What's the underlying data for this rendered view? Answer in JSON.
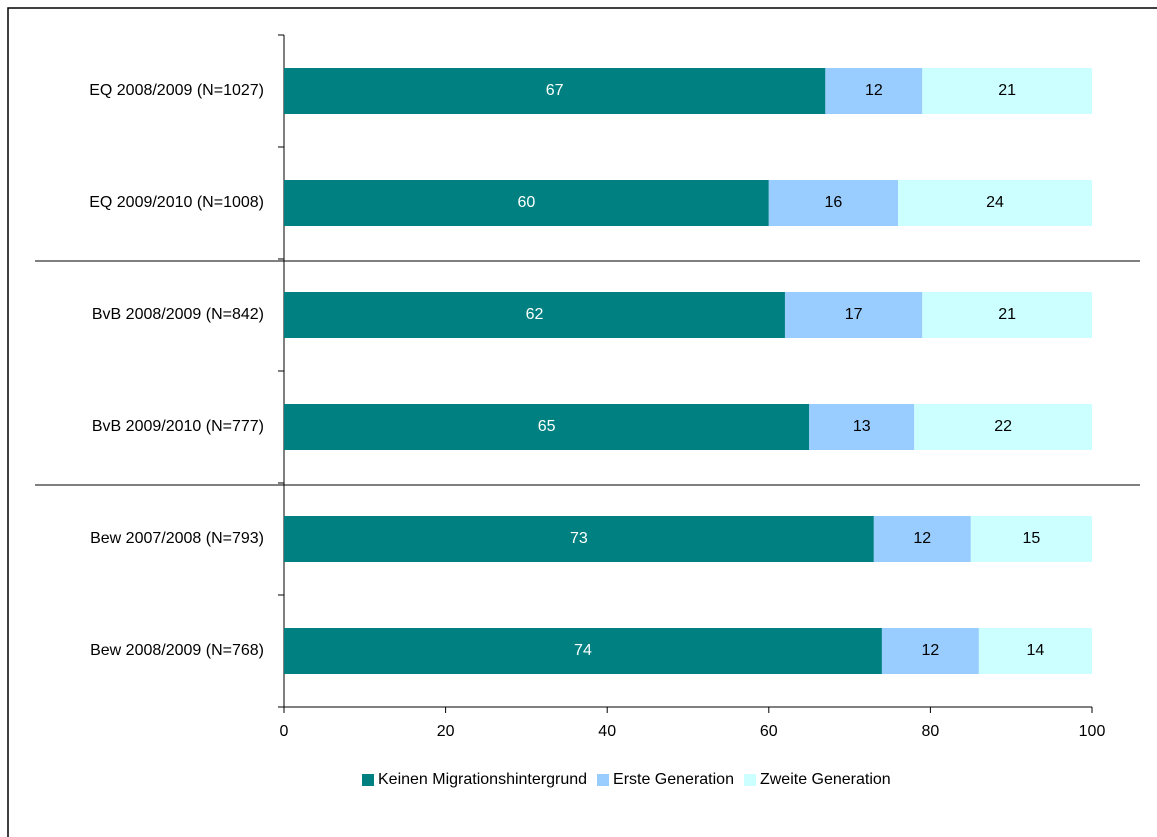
{
  "chart_data": {
    "type": "stacked_barh",
    "categories": [
      "EQ 2008/2009 (N=1027)",
      "EQ 2009/2010 (N=1008)",
      "BvB 2008/2009 (N=842)",
      "BvB 2009/2010 (N=777)",
      "Bew 2007/2008 (N=793)",
      "Bew 2008/2009 (N=768)"
    ],
    "series": [
      {
        "name": "Keinen Migrationshintergrund",
        "color": "#008080",
        "values": [
          67,
          60,
          62,
          65,
          73,
          74
        ]
      },
      {
        "name": "Erste Generation",
        "color": "#99ccff",
        "values": [
          12,
          16,
          17,
          13,
          12,
          12
        ]
      },
      {
        "name": "Zweite Generation",
        "color": "#ccffff",
        "values": [
          21,
          24,
          21,
          22,
          15,
          14
        ]
      }
    ],
    "xlim": [
      0,
      100
    ],
    "xticks": [
      0,
      20,
      40,
      60,
      80,
      100
    ],
    "legend": "bottom"
  }
}
